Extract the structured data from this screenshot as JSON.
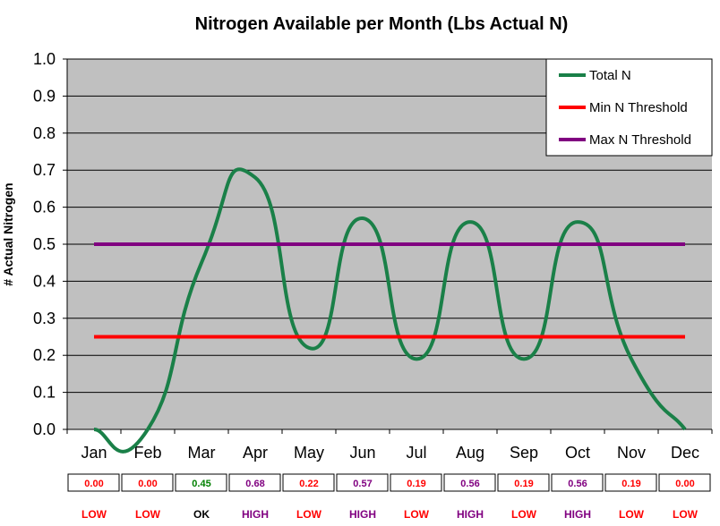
{
  "chart_data": {
    "type": "line",
    "title": "Nitrogen Available per Month (Lbs Actual N)",
    "ylabel": "# Actual Nitrogen",
    "xlabel": "",
    "ylim": [
      0,
      1.0
    ],
    "yticks": [
      "0.0",
      "0.1",
      "0.2",
      "0.3",
      "0.4",
      "0.5",
      "0.6",
      "0.7",
      "0.8",
      "0.9",
      "1.0"
    ],
    "categories": [
      "Jan",
      "Feb",
      "Mar",
      "Apr",
      "May",
      "Jun",
      "Jul",
      "Aug",
      "Sep",
      "Oct",
      "Nov",
      "Dec"
    ],
    "series": [
      {
        "name": "Total N",
        "color": "#1a8048",
        "smooth": true,
        "values": [
          0.0,
          0.0,
          0.45,
          0.68,
          0.22,
          0.57,
          0.19,
          0.56,
          0.19,
          0.56,
          0.19,
          0.0
        ]
      },
      {
        "name": "Min N Threshold",
        "color": "#ff0000",
        "values": [
          0.25,
          0.25,
          0.25,
          0.25,
          0.25,
          0.25,
          0.25,
          0.25,
          0.25,
          0.25,
          0.25,
          0.25
        ]
      },
      {
        "name": "Max N Threshold",
        "color": "#800080",
        "values": [
          0.5,
          0.5,
          0.5,
          0.5,
          0.5,
          0.5,
          0.5,
          0.5,
          0.5,
          0.5,
          0.5,
          0.5
        ]
      }
    ],
    "grid": true,
    "legend_position": "top-right",
    "plot_background": "#c0c0c0",
    "gridline_color": "#000000",
    "table": {
      "values": [
        "0.00",
        "0.00",
        "0.45",
        "0.68",
        "0.22",
        "0.57",
        "0.19",
        "0.56",
        "0.19",
        "0.56",
        "0.19",
        "0.00"
      ],
      "status": [
        "LOW",
        "LOW",
        "OK",
        "HIGH",
        "LOW",
        "HIGH",
        "LOW",
        "HIGH",
        "LOW",
        "HIGH",
        "LOW",
        "LOW"
      ]
    },
    "status_colors": {
      "LOW": "#ff0000",
      "OK": "#008000",
      "HIGH": "#800080"
    }
  }
}
